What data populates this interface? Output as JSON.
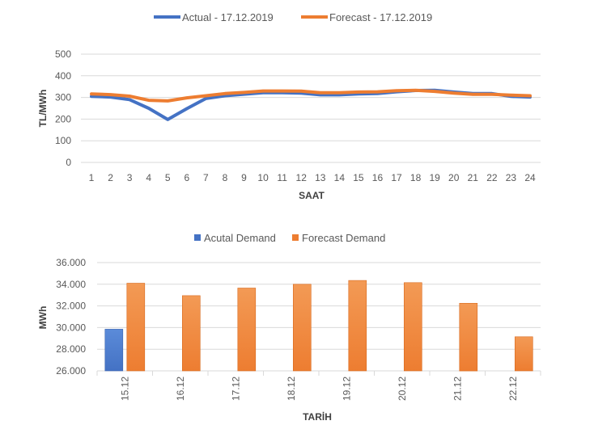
{
  "chart_data": [
    {
      "type": "line",
      "title": "",
      "xlabel": "SAAT",
      "ylabel": "TL/MWh",
      "ylim": [
        0,
        500
      ],
      "yticks": [
        "0",
        "100",
        "200",
        "300",
        "400",
        "500"
      ],
      "categories": [
        "1",
        "2",
        "3",
        "4",
        "5",
        "6",
        "7",
        "8",
        "9",
        "10",
        "11",
        "12",
        "13",
        "14",
        "15",
        "16",
        "17",
        "18",
        "19",
        "20",
        "21",
        "22",
        "23",
        "24"
      ],
      "grid": true,
      "legend": "top-center",
      "series": [
        {
          "name": "Actual - 17.12.2019",
          "color": "#4472C4",
          "values": [
            305,
            302,
            290,
            250,
            198,
            248,
            295,
            308,
            315,
            322,
            322,
            320,
            312,
            312,
            316,
            318,
            326,
            332,
            333,
            325,
            318,
            318,
            305,
            302
          ]
        },
        {
          "name": "Forecast - 17.12.2019",
          "color": "#ED7D31",
          "values": [
            316,
            313,
            306,
            287,
            284,
            298,
            308,
            318,
            323,
            330,
            330,
            329,
            322,
            322,
            325,
            326,
            331,
            333,
            328,
            320,
            314,
            314,
            311,
            308
          ]
        }
      ]
    },
    {
      "type": "bar",
      "title": "",
      "xlabel": "TARİH",
      "ylabel": "MWh",
      "ylim": [
        26000,
        36000
      ],
      "yticks": [
        "26.000",
        "28.000",
        "30.000",
        "32.000",
        "34.000",
        "36.000"
      ],
      "categories": [
        "15.12",
        "16.12",
        "17.12",
        "18.12",
        "19.12",
        "20.12",
        "21.12",
        "22.12"
      ],
      "grid": true,
      "legend": "top-center",
      "series": [
        {
          "name": "Acutal Demand",
          "color": "#4472C4",
          "values": [
            29850,
            null,
            null,
            null,
            null,
            null,
            null,
            null
          ]
        },
        {
          "name": "Forecast Demand",
          "color": "#ED7D31",
          "values": [
            34100,
            32950,
            33650,
            34000,
            34350,
            34150,
            32250,
            29150
          ]
        }
      ]
    }
  ]
}
